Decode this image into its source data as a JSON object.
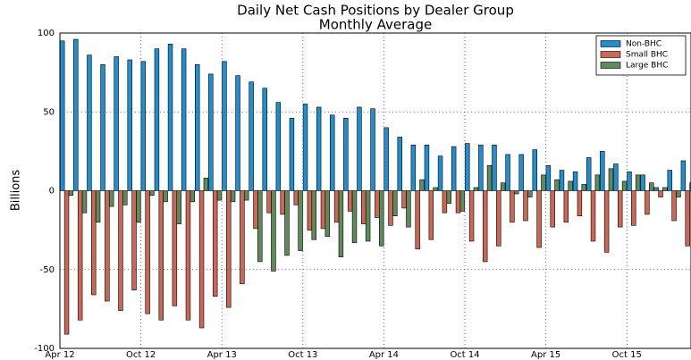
{
  "chart_data": {
    "type": "bar",
    "title": "Daily Net Cash Positions by Dealer Group",
    "subtitle": "Monthly Average",
    "y_label": "Billions",
    "categories": [
      "Apr 12",
      null,
      null,
      null,
      null,
      null,
      "Oct 12",
      null,
      null,
      null,
      null,
      null,
      "Apr 13",
      null,
      null,
      null,
      null,
      null,
      "Oct 13",
      null,
      null,
      null,
      null,
      null,
      "Apr 14",
      null,
      null,
      null,
      null,
      null,
      "Oct 14",
      null,
      null,
      null,
      null,
      null,
      "Apr 15",
      null,
      null,
      null,
      null,
      null,
      "Oct 15",
      null,
      null,
      null,
      null
    ],
    "series": [
      {
        "name": "Non-BHC",
        "color": "#1f8fd1",
        "values": [
          95,
          96,
          86,
          80,
          85,
          83,
          82,
          90,
          93,
          90,
          80,
          74,
          82,
          73,
          69,
          65,
          56,
          46,
          55,
          53,
          48,
          46,
          53,
          52,
          40,
          34,
          29,
          29,
          22,
          28,
          30,
          29,
          29,
          23,
          23,
          26,
          16,
          13,
          12,
          21,
          25,
          17,
          12,
          10,
          2,
          13,
          19
        ]
      },
      {
        "name": "Small BHC",
        "color": "#cc6655",
        "values": [
          -91,
          -82,
          -66,
          -70,
          -76,
          -63,
          -78,
          -82,
          -73,
          -82,
          -87,
          -67,
          -74,
          -59,
          -24,
          -14,
          -15,
          -9,
          -25,
          -24,
          -20,
          -13,
          -21,
          -17,
          -22,
          -11,
          -37,
          -31,
          -14,
          -14,
          -32,
          -45,
          -35,
          -20,
          -19,
          -36,
          -23,
          -20,
          -16,
          -32,
          -39,
          -23,
          -22,
          -15,
          -4,
          -19,
          -35
        ]
      },
      {
        "name": "Large BHC",
        "color": "#5f8a5a",
        "values": [
          -3,
          -14,
          -20,
          -10,
          -9,
          -20,
          -3,
          -7,
          -21,
          -7,
          8,
          -6,
          -7,
          -6,
          -45,
          -51,
          -41,
          -38,
          -31,
          -29,
          -42,
          -33,
          -32,
          -35,
          -16,
          -23,
          7,
          2,
          -8,
          -13,
          2,
          16,
          5,
          -2,
          -4,
          10,
          7,
          6,
          4,
          10,
          14,
          6,
          10,
          5,
          2,
          -4,
          5
        ]
      }
    ],
    "ylim": [
      -100,
      100
    ],
    "yticks": [
      -100,
      -50,
      0,
      50,
      100
    ],
    "grid": true,
    "legend": "upper right"
  }
}
